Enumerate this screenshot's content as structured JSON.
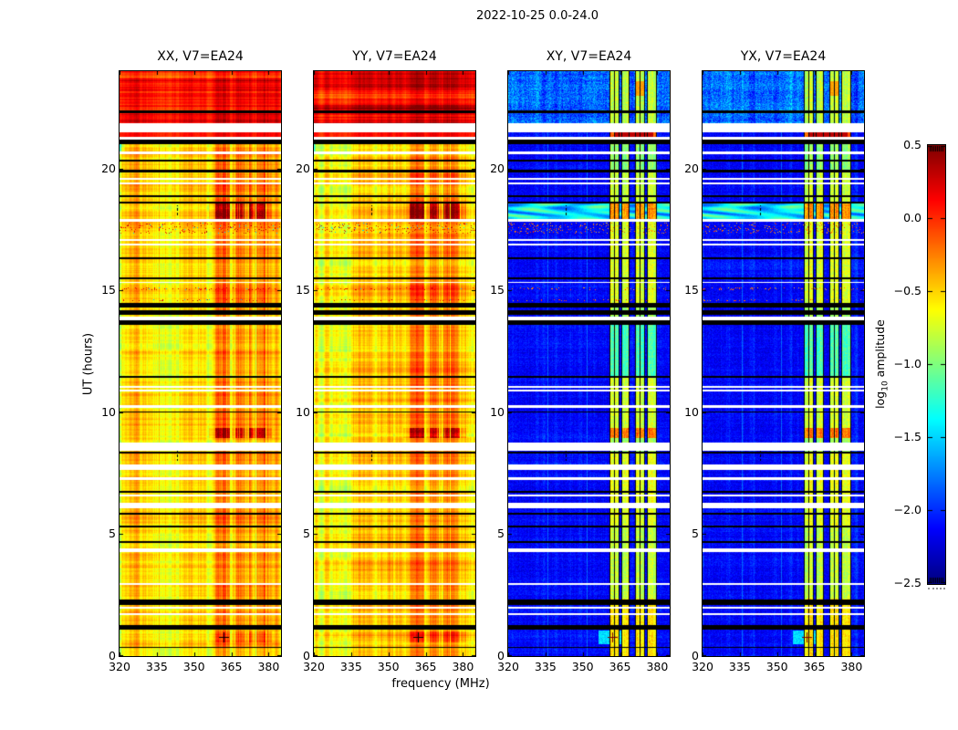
{
  "chart_data": {
    "type": "heatmap",
    "title": "2022-10-25 0.0-24.0",
    "xlabel": "frequency (MHz)",
    "ylabel": "UT (hours)",
    "x_range_mhz": [
      320,
      385
    ],
    "y_range_hours": [
      0,
      24
    ],
    "x_ticks": [
      320,
      335,
      350,
      365,
      380
    ],
    "y_ticks": [
      0,
      5,
      10,
      15,
      20
    ],
    "panels": [
      {
        "id": "xx",
        "title": "XX, V7=EA24",
        "kind": "parallel",
        "seed": 11
      },
      {
        "id": "yy",
        "title": "YY, V7=EA24",
        "kind": "parallel",
        "seed": 23
      },
      {
        "id": "xy",
        "title": "XY, V7=EA24",
        "kind": "cross",
        "seed": 37
      },
      {
        "id": "yx",
        "title": "YX, V7=EA24",
        "kind": "cross",
        "seed": 51
      }
    ],
    "colorbar": {
      "label_prefix": "log",
      "label_sub": "10",
      "label_suffix": " amplitude",
      "colormap": "jet",
      "range": [
        -2.5,
        0.5
      ],
      "ticks": [
        "0.5",
        "0.0",
        "−0.5",
        "−1.0",
        "−1.5",
        "−2.0",
        "−2.5"
      ],
      "tick_values": [
        0.5,
        0.0,
        -0.5,
        -1.0,
        -1.5,
        -2.0,
        -2.5
      ]
    },
    "features": {
      "white_gaps_hours": [
        [
          21.5,
          21.85
        ],
        [
          21.18,
          21.3
        ],
        [
          20.58,
          20.7
        ],
        [
          19.55,
          19.62
        ],
        [
          19.36,
          19.43
        ],
        [
          17.82,
          17.95
        ],
        [
          17.04,
          17.12
        ],
        [
          16.86,
          16.94
        ],
        [
          15.3,
          15.36
        ],
        [
          13.78,
          13.92
        ],
        [
          11.02,
          11.1
        ],
        [
          10.84,
          10.92
        ],
        [
          10.18,
          10.28
        ],
        [
          8.42,
          8.75
        ],
        [
          7.65,
          7.85
        ],
        [
          7.22,
          7.35
        ],
        [
          6.55,
          6.62
        ],
        [
          6.08,
          6.3
        ],
        [
          4.28,
          4.4
        ],
        [
          2.92,
          2.98
        ],
        [
          1.95,
          2.01
        ],
        [
          1.68,
          1.75
        ]
      ],
      "black_rows_hours": [
        [
          22.28,
          22.38
        ],
        [
          21.0,
          21.18
        ],
        [
          20.28,
          20.36
        ],
        [
          19.86,
          19.94
        ],
        [
          18.82,
          18.9
        ],
        [
          18.56,
          18.63
        ],
        [
          16.3,
          16.37
        ],
        [
          15.48,
          15.55
        ],
        [
          14.32,
          14.48
        ],
        [
          14.02,
          14.18
        ],
        [
          13.6,
          13.76
        ],
        [
          11.42,
          11.5
        ],
        [
          9.98,
          10.05
        ],
        [
          8.32,
          8.4
        ],
        [
          6.72,
          6.79
        ],
        [
          5.82,
          5.89
        ],
        [
          5.28,
          5.35
        ],
        [
          4.66,
          4.72
        ],
        [
          2.1,
          2.32
        ],
        [
          1.1,
          1.27
        ],
        [
          0.33,
          0.38
        ]
      ],
      "stripe_segments_mhz": [
        [
          356,
          358.4,
          0.18
        ],
        [
          358.4,
          364.5,
          0.42
        ],
        [
          365,
          366.2,
          0.2
        ],
        [
          366.6,
          370.2,
          0.36
        ],
        [
          370.6,
          371.6,
          0.15
        ],
        [
          372,
          374.6,
          0.4
        ],
        [
          375.2,
          378.6,
          0.44
        ],
        [
          379,
          381.5,
          0.22
        ]
      ],
      "stripe_rows": [
        [
          0,
          0.55,
          0.55
        ],
        [
          0.55,
          1.0,
          1.3
        ],
        [
          1.0,
          2.3,
          0.5
        ],
        [
          2.3,
          3.0,
          0.8
        ],
        [
          3.0,
          5.3,
          0.55
        ],
        [
          5.3,
          8.3,
          0.6
        ],
        [
          8.3,
          8.95,
          0.5
        ],
        [
          8.95,
          9.35,
          1.7
        ],
        [
          9.35,
          11.5,
          0.75
        ],
        [
          11.5,
          13.6,
          0.8
        ],
        [
          13.6,
          14.5,
          0.6
        ],
        [
          14.5,
          15.3,
          0.95
        ],
        [
          15.3,
          16.4,
          0.55
        ],
        [
          16.4,
          17.3,
          0.7
        ],
        [
          17.3,
          17.9,
          0.5
        ],
        [
          17.9,
          18.65,
          1.8
        ],
        [
          18.65,
          19.95,
          0.85
        ],
        [
          19.95,
          21.3,
          0.6
        ],
        [
          21.3,
          21.85,
          0.9
        ],
        [
          21.85,
          24,
          0.4
        ]
      ],
      "band_segments_mhz": [
        [
          360.8,
          364.4
        ],
        [
          365.6,
          368.4
        ],
        [
          370.9,
          374.7
        ],
        [
          375.9,
          379.5
        ]
      ],
      "band_grid_mhz": [
        360.8,
        362.6,
        364.4,
        365.6,
        368.4,
        370.9,
        372.9,
        374.7,
        375.9,
        379.5
      ],
      "band_rows": [
        [
          0,
          2.35,
          -0.55
        ],
        [
          2.35,
          5.35,
          -0.8
        ],
        [
          5.35,
          6.05,
          -0.7
        ],
        [
          6.05,
          8.3,
          -0.68
        ],
        [
          8.3,
          8.95,
          -0.9
        ],
        [
          8.95,
          9.35,
          -0.22
        ],
        [
          9.35,
          11.45,
          -0.75
        ],
        [
          11.45,
          13.6,
          -1.15
        ],
        [
          13.6,
          14.5,
          -0.9
        ],
        [
          14.5,
          17.9,
          -0.72
        ],
        [
          17.9,
          18.6,
          -0.3
        ],
        [
          18.6,
          19.9,
          -0.78
        ],
        [
          19.9,
          21.3,
          -0.95
        ],
        [
          21.3,
          21.6,
          -0.12
        ],
        [
          21.6,
          21.85,
          -0.6
        ],
        [
          21.85,
          24,
          -0.8
        ]
      ],
      "top_block_hours": [
        21.85,
        24
      ],
      "red_row_hours": [
        21.3,
        21.5
      ],
      "red_bar_cross": {
        "h0": 21.3,
        "h1": 21.6,
        "f0": 363,
        "f1": 378.5,
        "value": 0.32
      },
      "top_band_blob": {
        "h0": 23.0,
        "h1": 23.6,
        "band": 2,
        "value": -0.35
      },
      "green_left_rows": [
        [
          20.7,
          21.0
        ]
      ],
      "swirl_hours": [
        17.95,
        18.65
      ],
      "speckle_rows_hours": [
        [
          17.35,
          17.8
        ],
        [
          14.55,
          14.65
        ],
        [
          15.02,
          15.12
        ]
      ],
      "narrow_lines_mhz": [
        335.8,
        351.5
      ],
      "dash_marks": [
        {
          "f": 343,
          "h0": 8.0,
          "h1": 8.5
        },
        {
          "f": 343,
          "h0": 18.05,
          "h1": 18.5
        }
      ],
      "plus_marker": {
        "f": 362,
        "h": 0.8
      }
    }
  }
}
